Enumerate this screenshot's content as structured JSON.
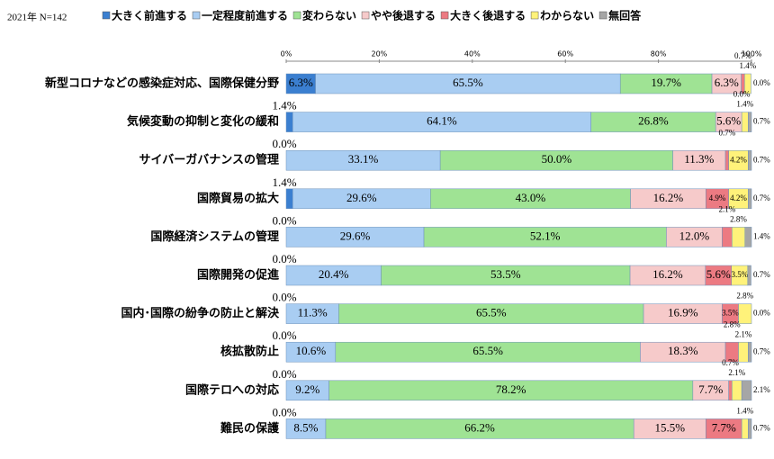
{
  "chart_data": {
    "type": "stacked-bar-horizontal",
    "subtitle": "2021年 N=142",
    "categories": [
      "新型コロナなどの感染症対応、国際保健分野",
      "気候変動の抑制と変化の緩和",
      "サイバーガバナンスの管理",
      "国際貿易の拡大",
      "国際経済システムの管理",
      "国際開発の促進",
      "国内･国際の紛争の防止と解決",
      "核拡散防止",
      "国際テロへの対応",
      "難民の保護"
    ],
    "series": [
      {
        "name": "大きく前進する",
        "color": "#3b7fd0",
        "values": [
          6.3,
          1.4,
          0.0,
          1.4,
          0.0,
          0.0,
          0.0,
          0.0,
          0.0,
          0.0
        ],
        "value_labels": [
          "6.3%",
          "1.4%",
          "0.0%",
          "1.4%",
          "0.0%",
          "0.0%",
          "0.0%",
          "0.0%",
          "0.0%",
          "0.0%"
        ]
      },
      {
        "name": "一定程度前進する",
        "color": "#a9cdf2",
        "values": [
          65.5,
          64.1,
          33.1,
          29.6,
          29.6,
          20.4,
          11.3,
          10.6,
          9.2,
          8.5
        ],
        "value_labels": [
          "65.5%",
          "64.1%",
          "33.1%",
          "29.6%",
          "29.6%",
          "20.4%",
          "11.3%",
          "10.6%",
          "9.2%",
          "8.5%"
        ]
      },
      {
        "name": "変わらない",
        "color": "#9fe394",
        "values": [
          19.7,
          26.8,
          50.0,
          43.0,
          52.1,
          53.5,
          65.5,
          65.5,
          78.2,
          66.2
        ],
        "value_labels": [
          "19.7%",
          "26.8%",
          "50.0%",
          "43.0%",
          "52.1%",
          "53.5%",
          "65.5%",
          "65.5%",
          "78.2%",
          "66.2%"
        ]
      },
      {
        "name": "やや後退する",
        "color": "#f6caca",
        "values": [
          6.3,
          5.6,
          11.3,
          16.2,
          12.0,
          16.2,
          16.9,
          18.3,
          7.7,
          15.5
        ],
        "value_labels": [
          "6.3%",
          "5.6%",
          "11.3%",
          "16.2%",
          "12.0%",
          "16.2%",
          "16.9%",
          "18.3%",
          "7.7%",
          "15.5%"
        ]
      },
      {
        "name": "大きく後退する",
        "color": "#ec7a82",
        "values": [
          0.7,
          0.0,
          0.7,
          4.9,
          2.1,
          5.6,
          3.5,
          2.8,
          0.7,
          7.7
        ],
        "value_labels": [
          "0.7%",
          "0.0%",
          "0.7%",
          "4.9%",
          "2.1%",
          "5.6%",
          "3.5%",
          "2.8%",
          "0.7%",
          "7.7%"
        ]
      },
      {
        "name": "わからない",
        "color": "#fff27a",
        "values": [
          1.4,
          1.4,
          4.2,
          4.2,
          2.8,
          3.5,
          2.8,
          2.1,
          2.1,
          1.4
        ],
        "value_labels": [
          "1.4%",
          "1.4%",
          "4.2%",
          "4.2%",
          "2.8%",
          "3.5%",
          "2.8%",
          "2.1%",
          "2.1%",
          "1.4%"
        ]
      },
      {
        "name": "無回答",
        "color": "#a6a6a6",
        "values": [
          0.0,
          0.7,
          0.7,
          0.7,
          1.4,
          0.7,
          0.0,
          0.7,
          2.1,
          0.7
        ],
        "value_labels": [
          "0.0%",
          "0.7%",
          "0.7%",
          "0.7%",
          "1.4%",
          "0.7%",
          "0.0%",
          "0.7%",
          "2.1%",
          "0.7%"
        ]
      }
    ],
    "xlim": [
      0,
      100
    ],
    "xticks": [
      {
        "value": 0,
        "label": "0%"
      },
      {
        "value": 20,
        "label": "20%"
      },
      {
        "value": 40,
        "label": "40%"
      },
      {
        "value": 60,
        "label": "60%"
      },
      {
        "value": 80,
        "label": "80%"
      },
      {
        "value": 100,
        "label": "100%"
      }
    ]
  }
}
